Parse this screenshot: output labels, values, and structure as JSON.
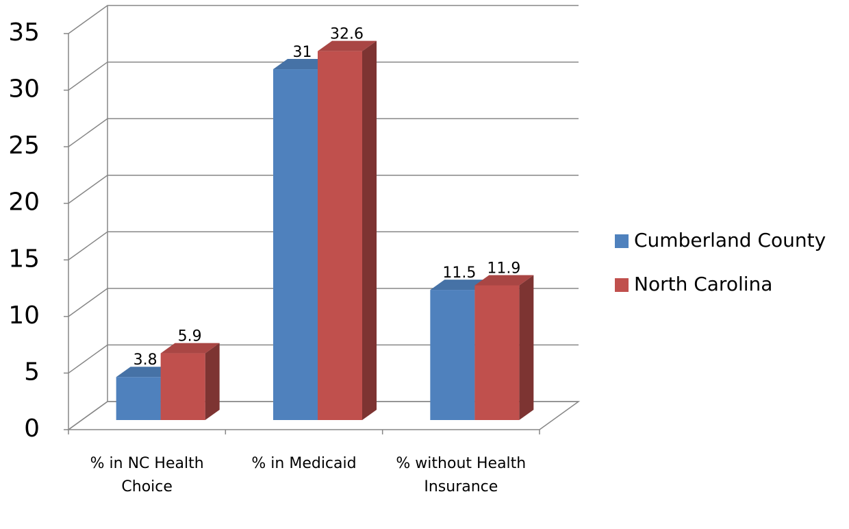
{
  "chart_data": {
    "type": "bar3d",
    "categories": [
      "% in NC Health Choice",
      "% in Medicaid",
      "% without Health Insurance"
    ],
    "series": [
      {
        "name": "Cumberland County",
        "color": "#4f81bd",
        "values": [
          3.8,
          31,
          11.5
        ]
      },
      {
        "name": "North Carolina",
        "color": "#c0504d",
        "values": [
          5.9,
          32.6,
          11.9
        ]
      }
    ],
    "ylim": [
      0,
      35
    ],
    "yticks": [
      0,
      5,
      10,
      15,
      20,
      25,
      30,
      35
    ],
    "grid": true,
    "legend": "right"
  }
}
